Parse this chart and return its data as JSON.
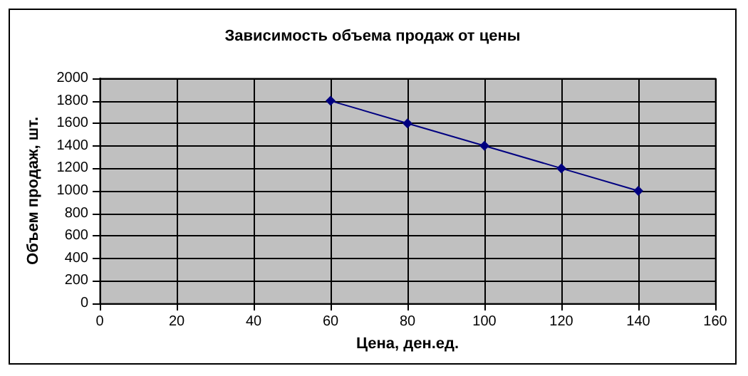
{
  "chart_data": {
    "type": "line",
    "title": "Зависимость объема продаж от цены",
    "xlabel": "Цена, ден.ед.",
    "ylabel": "Объем продаж, шт.",
    "series": [
      {
        "color": "#000080",
        "x": [
          60,
          80,
          100,
          120,
          140
        ],
        "values": [
          1800,
          1600,
          1400,
          1200,
          1000
        ]
      }
    ],
    "xlim": [
      0,
      160
    ],
    "xticks": [
      0,
      20,
      40,
      60,
      80,
      100,
      120,
      140,
      160
    ],
    "ylim": [
      0,
      2000
    ],
    "yticks": [
      0,
      200,
      400,
      600,
      800,
      1000,
      1200,
      1400,
      1600,
      1800,
      2000
    ],
    "grid": true,
    "marker": "diamond",
    "line_style": "solid"
  }
}
